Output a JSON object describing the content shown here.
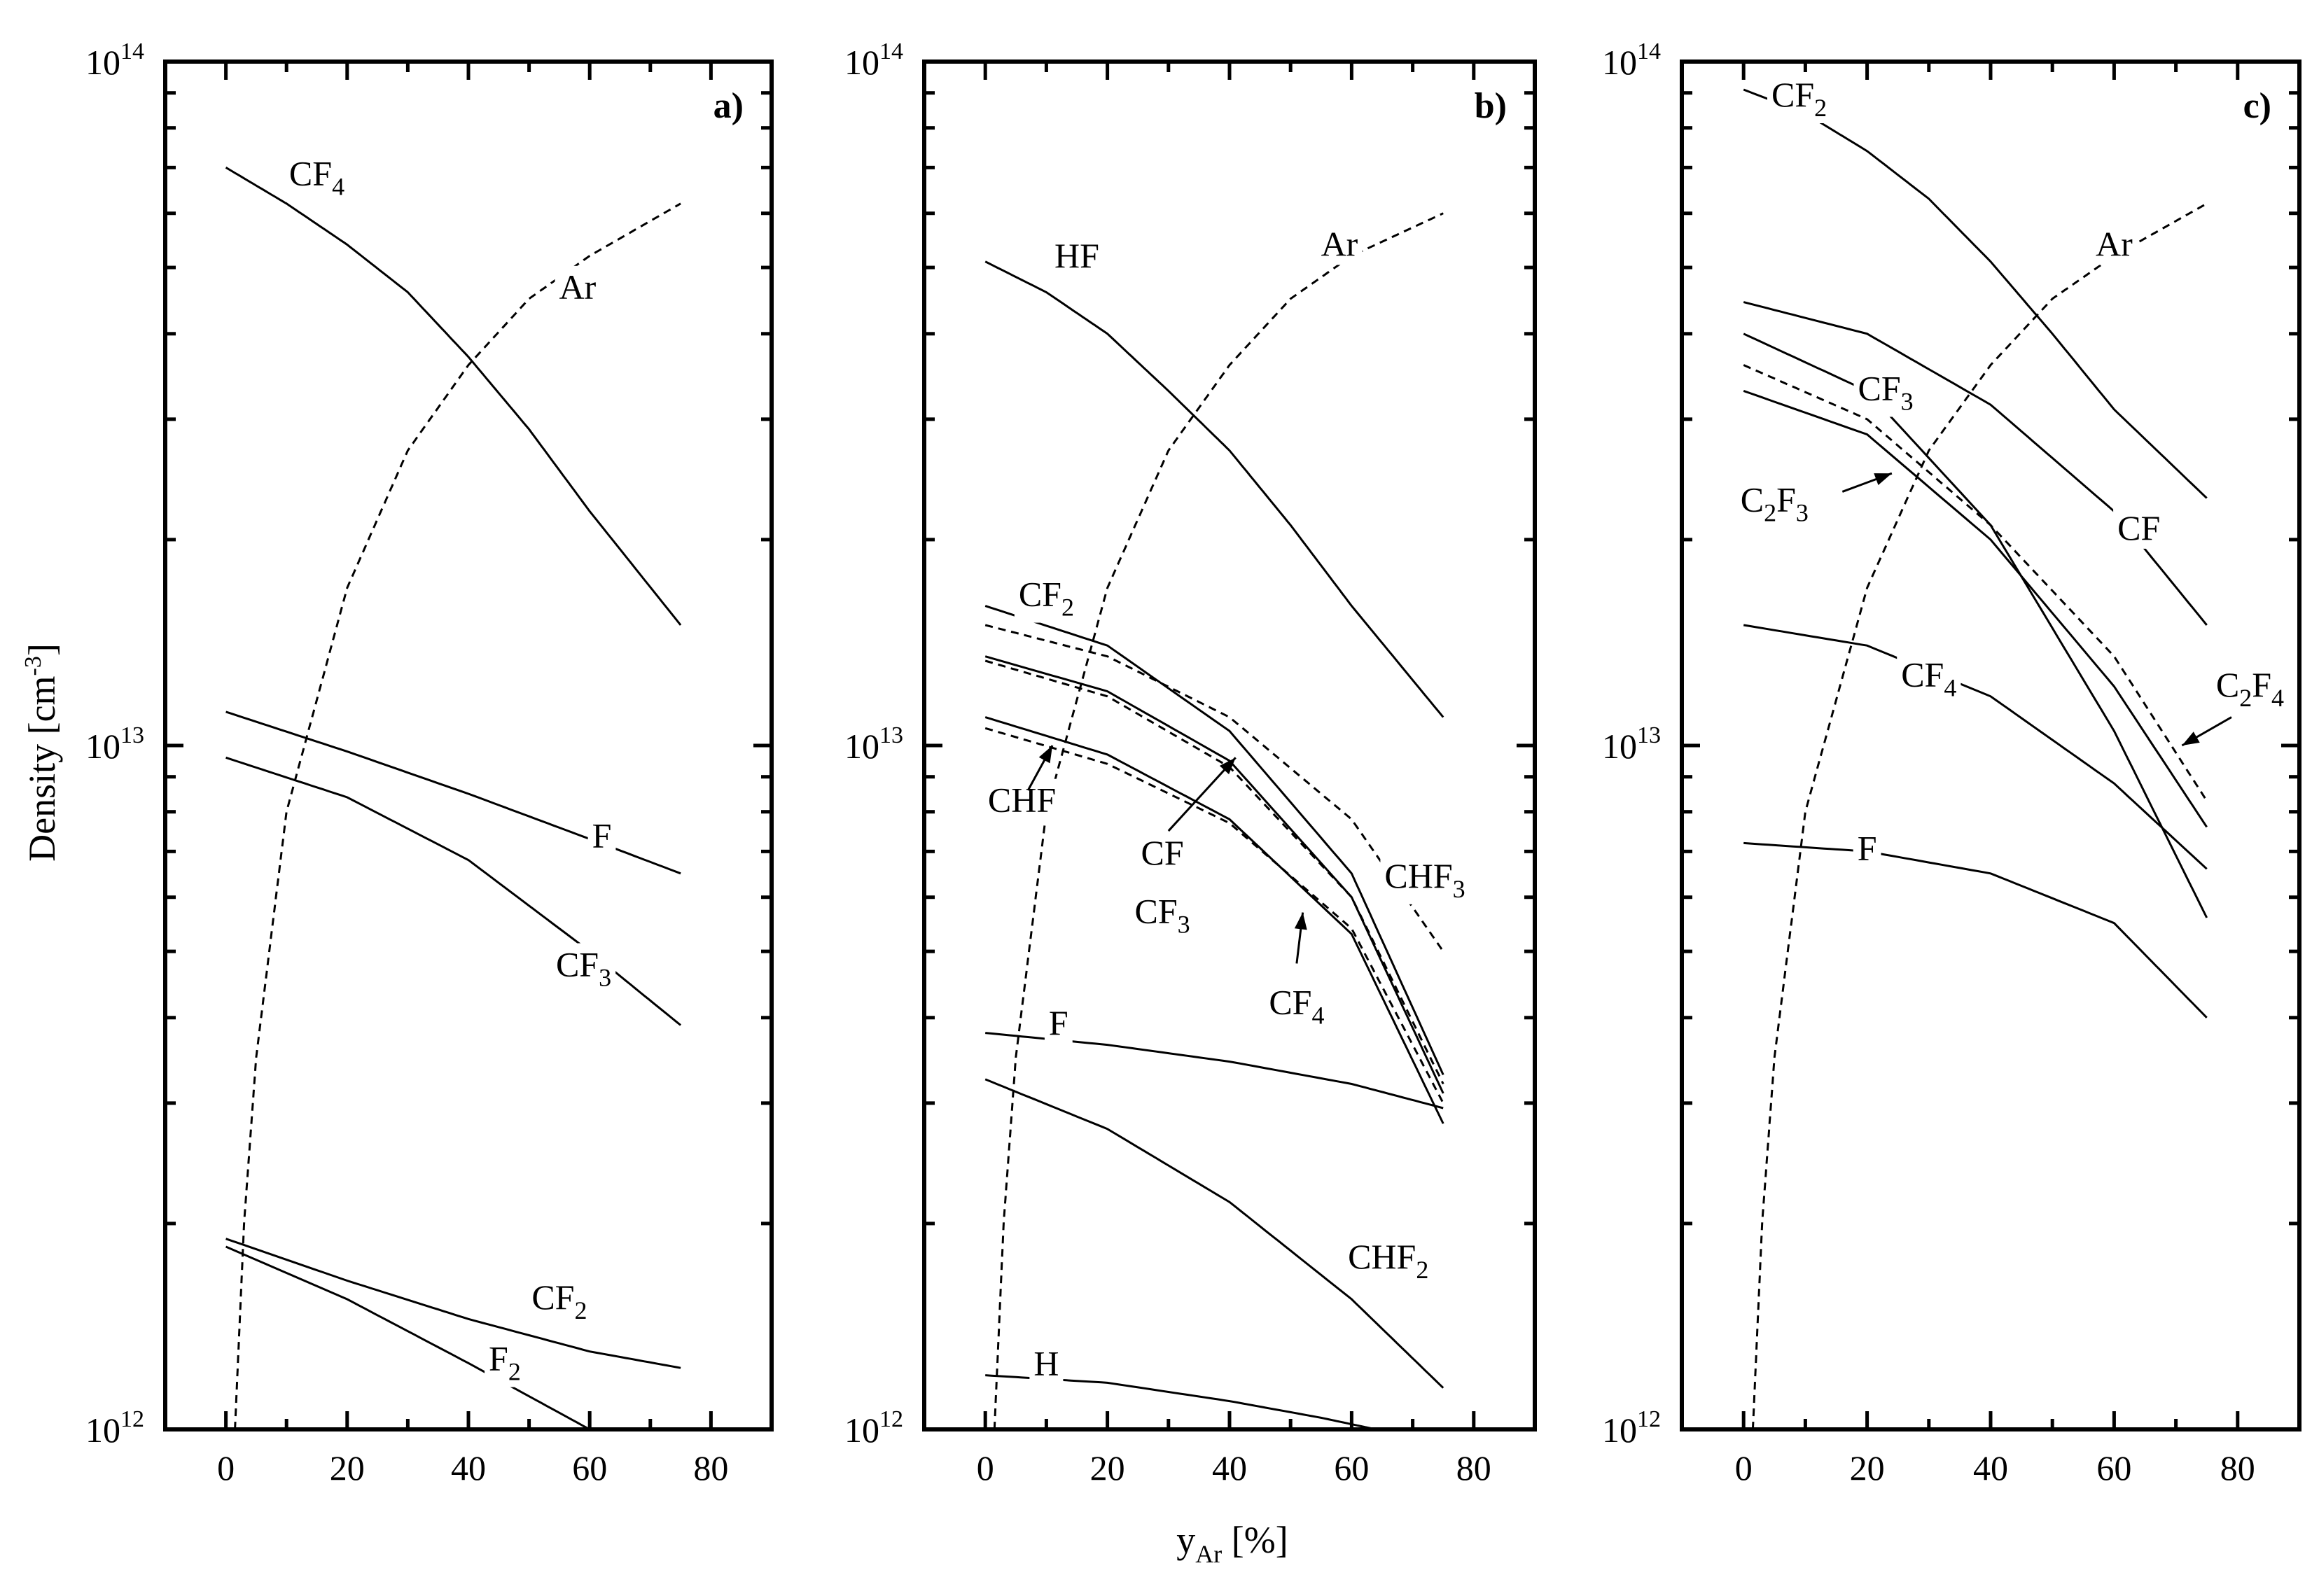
{
  "figure": {
    "ylabel": "Density [cm",
    "ylabel_exp": "-3",
    "ylabel_end": "]",
    "xlabel_main": "y",
    "xlabel_sub": "Ar",
    "xlabel_unit": " [%]"
  },
  "chart_data": [
    {
      "type": "line",
      "tag": "a)",
      "x_scale": "linear",
      "y_scale": "log",
      "xlim": [
        -10,
        90
      ],
      "ylim": [
        1000000000000.0,
        100000000000000.0
      ],
      "x_ticks": [
        0,
        20,
        40,
        60,
        80
      ],
      "y_tick_labels": [
        {
          "base": "10",
          "exp": "12",
          "value": 1000000000000.0
        },
        {
          "base": "10",
          "exp": "13",
          "value": 10000000000000.0
        },
        {
          "base": "10",
          "exp": "14",
          "value": 100000000000000.0
        }
      ],
      "series": [
        {
          "name": "CF",
          "sub": "4",
          "style": "solid",
          "x": [
            0,
            10,
            20,
            30,
            40,
            50,
            60,
            75
          ],
          "y": [
            70000000000000.0,
            62000000000000.0,
            54000000000000.0,
            46000000000000.0,
            37000000000000.0,
            29000000000000.0,
            22000000000000.0,
            15000000000000.0
          ]
        },
        {
          "name": "Ar",
          "sub": "",
          "style": "dashed",
          "x": [
            1.5,
            3,
            5,
            10,
            20,
            30,
            40,
            50,
            60,
            75
          ],
          "y": [
            1000000000000.0,
            2000000000000.0,
            3500000000000.0,
            8000000000000.0,
            17000000000000.0,
            27000000000000.0,
            36000000000000.0,
            45000000000000.0,
            52000000000000.0,
            62000000000000.0
          ]
        },
        {
          "name": "F",
          "sub": "",
          "style": "solid",
          "x": [
            0,
            20,
            40,
            60,
            75
          ],
          "y": [
            11200000000000.0,
            9800000000000.0,
            8500000000000.0,
            7300000000000.0,
            6500000000000.0
          ]
        },
        {
          "name": "CF",
          "sub": "3",
          "style": "solid",
          "x": [
            0,
            20,
            40,
            60,
            75
          ],
          "y": [
            9600000000000.0,
            8400000000000.0,
            6800000000000.0,
            5000000000000.0,
            3900000000000.0
          ]
        },
        {
          "name": "CF",
          "sub": "2",
          "style": "solid",
          "x": [
            0,
            20,
            40,
            60,
            75
          ],
          "y": [
            1900000000000.0,
            1650000000000.0,
            1450000000000.0,
            1300000000000.0,
            1230000000000.0
          ]
        },
        {
          "name": "F",
          "sub": "2",
          "style": "solid",
          "x": [
            0,
            20,
            40,
            60
          ],
          "y": [
            1850000000000.0,
            1550000000000.0,
            1250000000000.0,
            1000000000000.0
          ]
        }
      ]
    },
    {
      "type": "line",
      "tag": "b)",
      "x_scale": "linear",
      "y_scale": "log",
      "xlim": [
        -10,
        90
      ],
      "ylim": [
        1000000000000.0,
        100000000000000.0
      ],
      "x_ticks": [
        0,
        20,
        40,
        60,
        80
      ],
      "y_tick_labels": [
        {
          "base": "10",
          "exp": "12",
          "value": 1000000000000.0
        },
        {
          "base": "10",
          "exp": "13",
          "value": 10000000000000.0
        },
        {
          "base": "10",
          "exp": "14",
          "value": 100000000000000.0
        }
      ],
      "series": [
        {
          "name": "HF",
          "sub": "",
          "style": "solid",
          "x": [
            0,
            10,
            20,
            30,
            40,
            50,
            60,
            75
          ],
          "y": [
            51000000000000.0,
            46000000000000.0,
            40000000000000.0,
            33000000000000.0,
            27000000000000.0,
            21000000000000.0,
            16000000000000.0,
            11000000000000.0
          ]
        },
        {
          "name": "Ar",
          "sub": "",
          "style": "dashed",
          "x": [
            1.5,
            3,
            5,
            10,
            20,
            30,
            40,
            50,
            60,
            75
          ],
          "y": [
            1000000000000.0,
            2000000000000.0,
            3500000000000.0,
            8000000000000.0,
            17000000000000.0,
            27000000000000.0,
            36000000000000.0,
            45000000000000.0,
            52000000000000.0,
            60000000000000.0
          ]
        },
        {
          "name": "CF",
          "sub": "2",
          "style": "solid",
          "x": [
            0,
            20,
            40,
            60,
            75
          ],
          "y": [
            16000000000000.0,
            14000000000000.0,
            10500000000000.0,
            6500000000000.0,
            3300000000000.0
          ]
        },
        {
          "name": "CHF",
          "sub": "3",
          "style": "dashed",
          "x": [
            0,
            20,
            40,
            60,
            75
          ],
          "y": [
            15000000000000.0,
            13500000000000.0,
            11000000000000.0,
            7800000000000.0,
            5000000000000.0
          ]
        },
        {
          "name": "CF",
          "sub": "",
          "style": "solid",
          "x": [
            0,
            20,
            40,
            60,
            75
          ],
          "y": [
            13500000000000.0,
            12000000000000.0,
            9500000000000.0,
            6000000000000.0,
            3100000000000.0
          ]
        },
        {
          "name": "CF",
          "sub": "3",
          "style": "dashed",
          "x": [
            0,
            20,
            40,
            60,
            75
          ],
          "y": [
            13300000000000.0,
            11800000000000.0,
            9300000000000.0,
            6000000000000.0,
            3200000000000.0
          ]
        },
        {
          "name": "CHF",
          "sub": "",
          "style": "solid",
          "x": [
            0,
            20,
            40,
            60,
            75
          ],
          "y": [
            11000000000000.0,
            9700000000000.0,
            7800000000000.0,
            5300000000000.0,
            2800000000000.0
          ]
        },
        {
          "name": "CF",
          "sub": "4",
          "style": "dashed",
          "x": [
            0,
            20,
            40,
            60,
            75
          ],
          "y": [
            10600000000000.0,
            9400000000000.0,
            7700000000000.0,
            5400000000000.0,
            3000000000000.0
          ]
        },
        {
          "name": "F",
          "sub": "",
          "style": "solid",
          "x": [
            0,
            20,
            40,
            60,
            75
          ],
          "y": [
            3800000000000.0,
            3650000000000.0,
            3450000000000.0,
            3200000000000.0,
            2950000000000.0
          ]
        },
        {
          "name": "CHF",
          "sub": "2",
          "style": "solid",
          "x": [
            0,
            20,
            40,
            60,
            75
          ],
          "y": [
            3250000000000.0,
            2750000000000.0,
            2150000000000.0,
            1550000000000.0,
            1150000000000.0
          ]
        },
        {
          "name": "H",
          "sub": "",
          "style": "solid",
          "x": [
            0,
            20,
            40,
            55,
            64
          ],
          "y": [
            1200000000000.0,
            1170000000000.0,
            1100000000000.0,
            1040000000000.0,
            1000000000000.0
          ]
        }
      ]
    },
    {
      "type": "line",
      "tag": "c)",
      "x_scale": "linear",
      "y_scale": "log",
      "xlim": [
        -10,
        90
      ],
      "ylim": [
        1000000000000.0,
        100000000000000.0
      ],
      "x_ticks": [
        0,
        20,
        40,
        60,
        80
      ],
      "y_tick_labels": [
        {
          "base": "10",
          "exp": "12",
          "value": 1000000000000.0
        },
        {
          "base": "10",
          "exp": "13",
          "value": 10000000000000.0
        },
        {
          "base": "10",
          "exp": "14",
          "value": 100000000000000.0
        }
      ],
      "series": [
        {
          "name": "CF",
          "sub": "2",
          "style": "solid",
          "x": [
            0,
            10,
            20,
            30,
            40,
            50,
            60,
            75
          ],
          "y": [
            91000000000000.0,
            84000000000000.0,
            74000000000000.0,
            63000000000000.0,
            51000000000000.0,
            40000000000000.0,
            31000000000000.0,
            23000000000000.0
          ]
        },
        {
          "name": "Ar",
          "sub": "",
          "style": "dashed",
          "x": [
            1.5,
            3,
            5,
            10,
            20,
            30,
            40,
            50,
            60,
            75
          ],
          "y": [
            1000000000000.0,
            2000000000000.0,
            3500000000000.0,
            8000000000000.0,
            17000000000000.0,
            27000000000000.0,
            36000000000000.0,
            45000000000000.0,
            52000000000000.0,
            62000000000000.0
          ]
        },
        {
          "name": "CF",
          "sub": "",
          "style": "solid",
          "x": [
            0,
            20,
            40,
            60,
            75
          ],
          "y": [
            44500000000000.0,
            40000000000000.0,
            31500000000000.0,
            22000000000000.0,
            15000000000000.0
          ]
        },
        {
          "name": "CF",
          "sub": "3",
          "style": "solid",
          "x": [
            0,
            20,
            40,
            60,
            75
          ],
          "y": [
            40000000000000.0,
            33000000000000.0,
            21000000000000.0,
            10500000000000.0,
            5600000000000.0
          ]
        },
        {
          "name": "C",
          "sub": "2",
          "extra": "F",
          "extra_sub": "4",
          "style": "dashed",
          "x": [
            0,
            20,
            40,
            60,
            75
          ],
          "y": [
            36000000000000.0,
            30000000000000.0,
            21000000000000.0,
            13500000000000.0,
            8300000000000.0
          ]
        },
        {
          "name": "C",
          "sub": "2",
          "extra": "F",
          "extra_sub": "3",
          "style": "solid",
          "x": [
            0,
            20,
            40,
            60,
            75
          ],
          "y": [
            33000000000000.0,
            28500000000000.0,
            20000000000000.0,
            12200000000000.0,
            7600000000000.0
          ]
        },
        {
          "name": "CF",
          "sub": "4",
          "style": "solid",
          "x": [
            0,
            20,
            40,
            60,
            75
          ],
          "y": [
            15000000000000.0,
            14000000000000.0,
            11800000000000.0,
            8800000000000.0,
            6600000000000.0
          ]
        },
        {
          "name": "F",
          "sub": "",
          "style": "solid",
          "x": [
            0,
            20,
            40,
            60,
            75
          ],
          "y": [
            7200000000000.0,
            7000000000000.0,
            6500000000000.0,
            5500000000000.0,
            4000000000000.0
          ]
        }
      ]
    }
  ]
}
